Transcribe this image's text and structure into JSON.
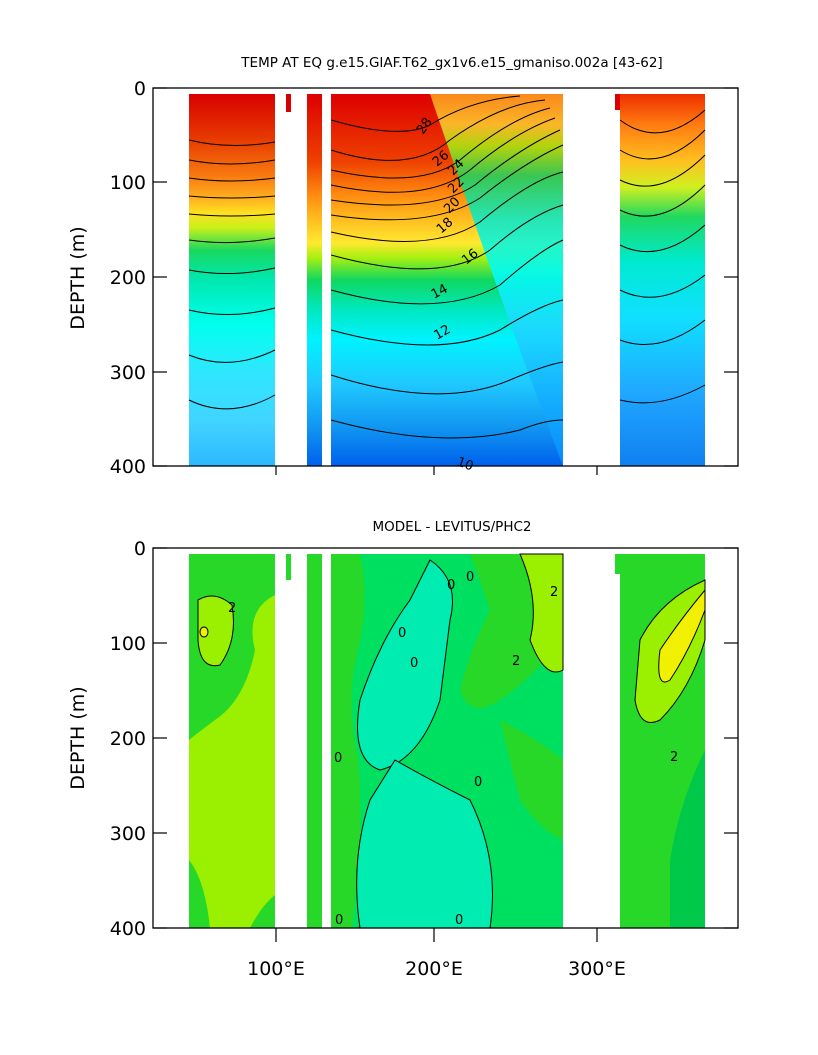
{
  "chart_data": [
    {
      "type": "contour",
      "title": "TEMP AT EQ g.e15.GIAF.T62_gx1v6.e15_gmaniso.002a [43-62]",
      "ylabel": "DEPTH (m)",
      "xlabel": "",
      "xlim": [
        25,
        385
      ],
      "ylim": [
        400,
        0
      ],
      "yticks": [
        0,
        100,
        200,
        300,
        400
      ],
      "xtick_labels": [],
      "land_masks_lon": [
        [
          98,
          118
        ],
        [
          129,
          133
        ],
        [
          278,
          314
        ]
      ],
      "ocean_extent_lon": [
        43,
        365
      ],
      "contour_labels": [
        {
          "text": "28",
          "lon": 160,
          "depth": 40
        },
        {
          "text": "26",
          "lon": 173,
          "depth": 70
        },
        {
          "text": "24",
          "lon": 186,
          "depth": 85
        },
        {
          "text": "22",
          "lon": 185,
          "depth": 105
        },
        {
          "text": "20",
          "lon": 182,
          "depth": 125
        },
        {
          "text": "18",
          "lon": 177,
          "depth": 145
        },
        {
          "text": "16",
          "lon": 165,
          "depth": 182
        },
        {
          "text": "14",
          "lon": 150,
          "depth": 212
        },
        {
          "text": "12",
          "lon": 138,
          "depth": 252
        },
        {
          "text": "10",
          "lon": 172,
          "depth": 388
        }
      ]
    },
    {
      "type": "contour",
      "title": "MODEL - LEVITUS/PHC2",
      "ylabel": "DEPTH (m)",
      "xlabel": "",
      "xlim": [
        25,
        385
      ],
      "ylim": [
        400,
        0
      ],
      "yticks": [
        0,
        100,
        200,
        300,
        400
      ],
      "xtick_labels": [
        "100°E",
        "200°E",
        "300°E"
      ],
      "xtick_values": [
        100,
        200,
        300
      ],
      "land_masks_lon": [
        [
          98,
          118
        ],
        [
          129,
          133
        ],
        [
          278,
          314
        ]
      ],
      "ocean_extent_lon": [
        43,
        365
      ],
      "contour_labels": [
        {
          "text": "0",
          "lon": 222,
          "depth": 24
        },
        {
          "text": "0",
          "lon": 204,
          "depth": 30
        },
        {
          "text": "2",
          "lon": 265,
          "depth": 45
        },
        {
          "text": "2",
          "lon": 72,
          "depth": 62
        },
        {
          "text": "0",
          "lon": 151,
          "depth": 85
        },
        {
          "text": "2",
          "lon": 243,
          "depth": 120
        },
        {
          "text": "0",
          "lon": 170,
          "depth": 125
        },
        {
          "text": "0",
          "lon": 137,
          "depth": 222
        },
        {
          "text": "0",
          "lon": 203,
          "depth": 260
        },
        {
          "text": "2",
          "lon": 347,
          "depth": 222
        },
        {
          "text": "0",
          "lon": 143,
          "depth": 392
        },
        {
          "text": "0",
          "lon": 224,
          "depth": 392
        }
      ]
    }
  ]
}
